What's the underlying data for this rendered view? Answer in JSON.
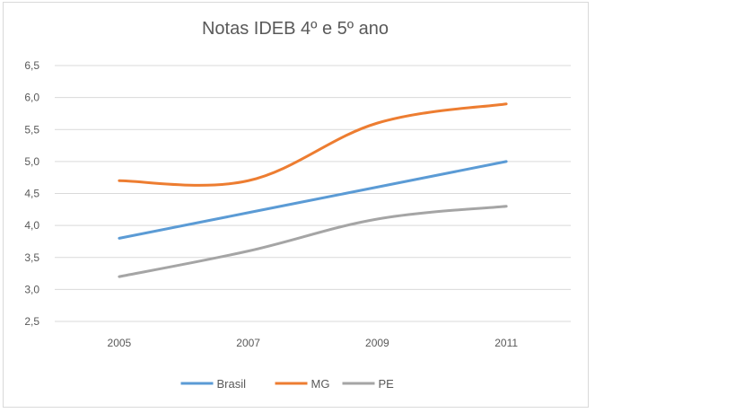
{
  "chart_data": {
    "type": "line",
    "title": "Notas IDEB 4º e 5º ano",
    "xlabel": "",
    "ylabel": "",
    "categories": [
      "2005",
      "2007",
      "2009",
      "2011"
    ],
    "ylim": [
      2.5,
      6.5
    ],
    "yticks": [
      2.5,
      3.0,
      3.5,
      4.0,
      4.5,
      5.0,
      5.5,
      6.0,
      6.5
    ],
    "ytick_labels": [
      "2,5",
      "3,0",
      "3,5",
      "4,0",
      "4,5",
      "5,0",
      "5,5",
      "6,0",
      "6,5"
    ],
    "grid": true,
    "legend_position": "bottom",
    "series": [
      {
        "name": "Brasil",
        "color": "#5b9bd5",
        "values": [
          3.8,
          4.2,
          4.6,
          5.0
        ]
      },
      {
        "name": "MG",
        "color": "#ed7d31",
        "values": [
          4.7,
          4.7,
          5.6,
          5.9
        ]
      },
      {
        "name": "PE",
        "color": "#a5a5a5",
        "values": [
          3.2,
          3.6,
          4.1,
          4.3
        ]
      }
    ]
  }
}
